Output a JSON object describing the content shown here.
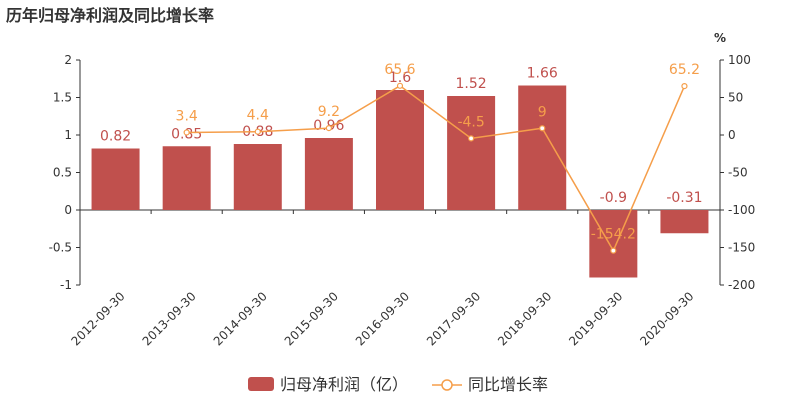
{
  "title": "历年归母净利润及同比增长率",
  "colors": {
    "bar": "#c0504d",
    "line": "#f59e4a",
    "axis": "#333333"
  },
  "chart_data": {
    "type": "bar",
    "categories": [
      "2012-09-30",
      "2013-09-30",
      "2014-09-30",
      "2015-09-30",
      "2016-09-30",
      "2017-09-30",
      "2018-09-30",
      "2019-09-30",
      "2020-09-30"
    ],
    "series": [
      {
        "name": "归母净利润（亿）",
        "type": "bar",
        "axis": "left",
        "values": [
          0.82,
          0.85,
          0.88,
          0.96,
          1.6,
          1.52,
          1.66,
          -0.9,
          -0.31
        ],
        "labels": [
          "0.82",
          "0.85",
          "0.88",
          "0.96",
          "1.6",
          "1.52",
          "1.66",
          "-0.9",
          "-0.31"
        ]
      },
      {
        "name": "同比增长率",
        "type": "line",
        "axis": "right",
        "values": [
          null,
          3.4,
          4.4,
          9.2,
          65.6,
          -4.5,
          9,
          -154.2,
          65.2
        ],
        "labels": [
          "",
          "3.4",
          "4.4",
          "9.2",
          "65.6",
          "-4.5",
          "9",
          "-154.2",
          "65.2"
        ]
      }
    ],
    "y_left": {
      "ylim": [
        -1,
        2
      ],
      "ticks": [
        "2",
        "1.5",
        "1",
        "0.5",
        "0",
        "-0.5",
        "-1"
      ]
    },
    "y_right": {
      "ylim": [
        -200,
        100
      ],
      "unit": "%",
      "ticks": [
        "100",
        "50",
        "0",
        "-50",
        "-100",
        "-150",
        "-200"
      ]
    },
    "legend": "bottom-center",
    "grid": false
  }
}
